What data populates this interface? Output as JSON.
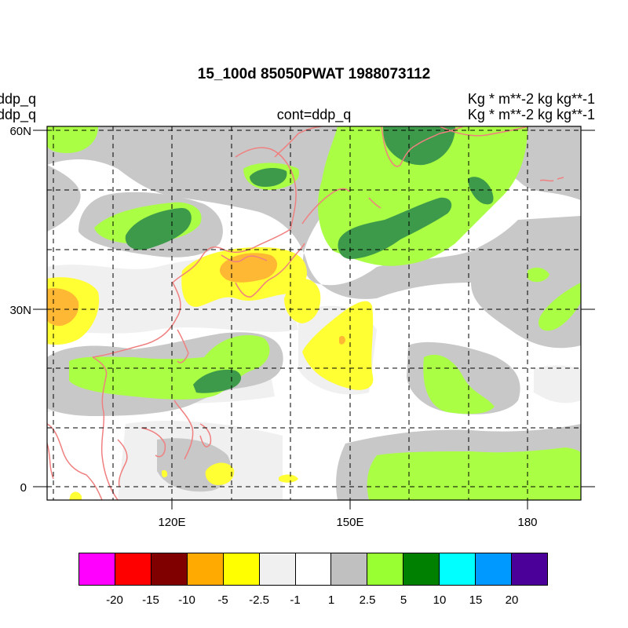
{
  "title": "15_100d 85050PWAT  1988073112",
  "left_labels": [
    "ddp_q",
    "ddp_q"
  ],
  "center_label": "cont=ddp_q",
  "right_labels": [
    "Kg  * m**-2 kg kg**-1",
    "Kg  * m**-2 kg kg**-1"
  ],
  "map": {
    "projection": "cylindrical-equidistant",
    "lon_range": [
      100,
      189
    ],
    "lat_range": [
      -2,
      61
    ],
    "lat_ticks": [
      {
        "value": 60,
        "label": "60N"
      },
      {
        "value": 30,
        "label": "30N"
      },
      {
        "value": 0,
        "label": "0"
      }
    ],
    "lon_ticks": [
      {
        "value": 120,
        "label": "120E"
      },
      {
        "value": 150,
        "label": "150E"
      },
      {
        "value": 180,
        "label": "180"
      }
    ],
    "grid_lines": "dashed",
    "coastline_color": "#f08080"
  },
  "colorbar": {
    "colors": [
      "#ff00ff",
      "#ff0000",
      "#800000",
      "#ffaa00",
      "#ffff00",
      "#f0f0f0",
      "#ffffff",
      "#c0c0c0",
      "#99ff33",
      "#008000",
      "#00ffff",
      "#0099ff",
      "#4b0099"
    ],
    "labels": [
      "-20",
      "-15",
      "-10",
      "-5",
      "-2.5",
      "-1",
      "1",
      "2.5",
      "5",
      "10",
      "15",
      "20"
    ]
  }
}
